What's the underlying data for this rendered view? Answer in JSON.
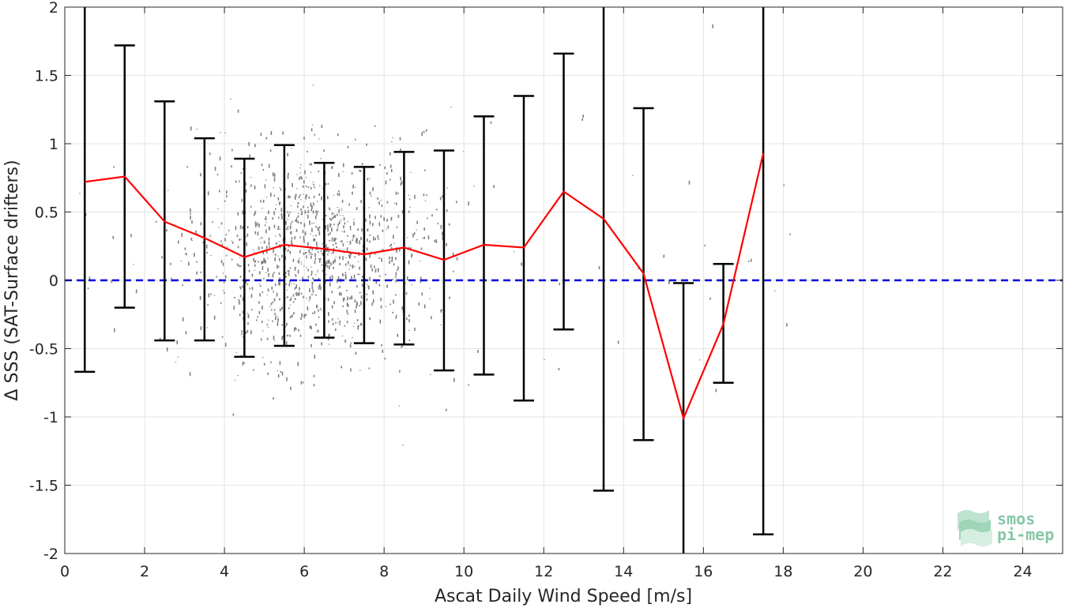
{
  "chart_data": {
    "type": "scatter",
    "xlabel": "Ascat Daily Wind Speed [m/s]",
    "ylabel": "Δ SSS (SAT-Surface drifters)",
    "xlim": [
      0,
      25
    ],
    "ylim": [
      -2,
      2
    ],
    "xticks": [
      0,
      2,
      4,
      6,
      8,
      10,
      12,
      14,
      16,
      18,
      20,
      22,
      24
    ],
    "xtick_labels": [
      "0",
      "2",
      "4",
      "6",
      "8",
      "10",
      "12",
      "14",
      "16",
      "18",
      "20",
      "22",
      "24"
    ],
    "yticks": [
      -2,
      -1.5,
      -1,
      -0.5,
      0,
      0.5,
      1,
      1.5,
      2
    ],
    "ytick_labels": [
      "-2",
      "-1.5",
      "-1",
      "-0.5",
      "0",
      "0.5",
      "1",
      "1.5",
      "2"
    ],
    "grid": true,
    "zero_line": {
      "y": 0,
      "color": "#0000dd",
      "style": "dashed"
    },
    "scatter_color": "#808080",
    "scatter_description": "dense gray point cloud of individual matchups, concentrated between 3 and 9 m/s and -0.5 to 1",
    "mean_line": {
      "color": "#ff0000",
      "x": [
        0.5,
        1.5,
        2.5,
        3.5,
        4.5,
        5.5,
        6.5,
        7.5,
        8.5,
        9.5,
        10.5,
        11.5,
        12.5,
        13.5,
        14.5,
        15.5,
        16.5,
        17.5
      ],
      "y": [
        0.72,
        0.76,
        0.43,
        0.31,
        0.17,
        0.26,
        0.23,
        0.19,
        0.24,
        0.15,
        0.26,
        0.24,
        0.65,
        0.45,
        0.05,
        -1.01,
        -0.32,
        0.93
      ]
    },
    "error_bars": {
      "color": "#000000",
      "x": [
        0.5,
        1.5,
        2.5,
        3.5,
        4.5,
        5.5,
        6.5,
        7.5,
        8.5,
        9.5,
        10.5,
        11.5,
        12.5,
        13.5,
        14.5,
        15.5,
        16.5,
        17.5
      ],
      "lower": [
        -0.67,
        -0.2,
        -0.44,
        -0.44,
        -0.56,
        -0.48,
        -0.42,
        -0.46,
        -0.47,
        -0.66,
        -0.69,
        -0.88,
        -0.36,
        -1.54,
        -1.17,
        -2.5,
        -0.75,
        -1.86
      ],
      "upper": [
        2.5,
        1.72,
        1.31,
        1.04,
        0.89,
        0.99,
        0.86,
        0.83,
        0.94,
        0.95,
        1.2,
        1.35,
        1.66,
        2.5,
        1.26,
        -0.02,
        0.12,
        2.5
      ]
    }
  },
  "logo": {
    "line1": "smos",
    "line2": "pi-mep"
  }
}
